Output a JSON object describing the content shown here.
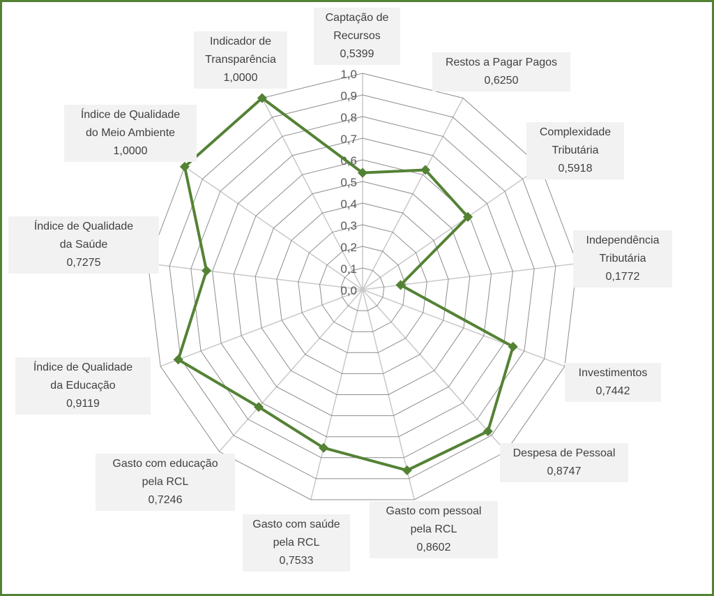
{
  "chart_data": {
    "type": "radar",
    "title": "",
    "categories": [
      [
        "Captação de",
        "Recursos"
      ],
      [
        "Restos a Pagar Pagos"
      ],
      [
        "Complexidade",
        "Tributária"
      ],
      [
        "Independência",
        "Tributária"
      ],
      [
        "Investimentos"
      ],
      [
        "Despesa de Pessoal"
      ],
      [
        "Gasto com pessoal",
        "pela RCL"
      ],
      [
        "Gasto com saúde",
        "pela RCL"
      ],
      [
        "Gasto com educação",
        "pela RCL"
      ],
      [
        "Índice de Qualidade",
        "da Educação"
      ],
      [
        "Índice de Qualidade",
        "da Saúde"
      ],
      [
        "Índice de Qualidade",
        "do Meio Ambiente"
      ],
      [
        "Indicador de",
        "Transparência"
      ]
    ],
    "values": [
      0.5399,
      0.625,
      0.5918,
      0.1772,
      0.7442,
      0.8747,
      0.8602,
      0.7533,
      0.7246,
      0.9119,
      0.7275,
      1.0,
      1.0
    ],
    "value_labels": [
      "0,5399",
      "0,6250",
      "0,5918",
      "0,1772",
      "0,7442",
      "0,8747",
      "0,8602",
      "0,7533",
      "0,7246",
      "0,9119",
      "0,7275",
      "1,0000",
      "1,0000"
    ],
    "rlim": [
      0,
      1
    ],
    "tick_labels": [
      "0,0",
      "0,1",
      "0,2",
      "0,3",
      "0,4",
      "0,5",
      "0,6",
      "0,7",
      "0,8",
      "0,9",
      "1,0"
    ],
    "grid": true,
    "legend": "none",
    "colors": {
      "series": "#548235",
      "frame": "#548235",
      "grid": "#8c8c8c",
      "spokes": "#c8c8c8",
      "label_bg": "#f2f2f2"
    }
  }
}
